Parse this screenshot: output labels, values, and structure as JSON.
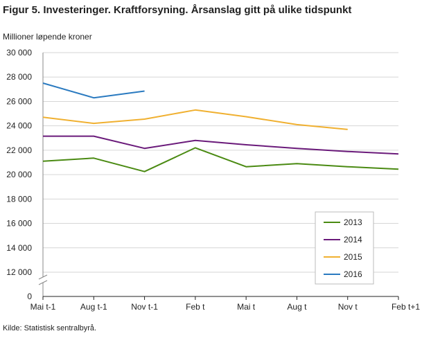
{
  "title": "Figur 5. Investeringer. Kraftforsyning. Årsanslag gitt på ulike tidspunkt",
  "source": "Kilde: Statistisk sentralbyrå.",
  "chart_data": {
    "type": "line",
    "ylabel": "Millioner løpende kroner",
    "xlabel": "",
    "categories": [
      "Mai t-1",
      "Aug t-1",
      "Nov t-1",
      "Feb t",
      "Mai t",
      "Aug t",
      "Nov t",
      "Feb t+1"
    ],
    "yticks": [
      0,
      12000,
      14000,
      16000,
      18000,
      20000,
      22000,
      24000,
      26000,
      28000,
      30000
    ],
    "ytick_labels": [
      "0",
      "12 000",
      "14 000",
      "16 000",
      "18 000",
      "20 000",
      "22 000",
      "24 000",
      "26 000",
      "28 000",
      "30 000"
    ],
    "ylim": [
      10000,
      30000
    ],
    "axis_break": true,
    "grid": "horizontal",
    "legend_position": "bottom-right",
    "series": [
      {
        "name": "2013",
        "color": "#4a8a12",
        "values": [
          21100,
          21350,
          20250,
          22200,
          20650,
          20900,
          20650,
          20450
        ]
      },
      {
        "name": "2014",
        "color": "#6a1a7a",
        "values": [
          23150,
          23150,
          22150,
          22800,
          22450,
          22150,
          21900,
          21700
        ]
      },
      {
        "name": "2015",
        "color": "#f0b030",
        "values": [
          24700,
          24200,
          24550,
          25300,
          24750,
          24100,
          23700,
          null
        ]
      },
      {
        "name": "2016",
        "color": "#2a7ac0",
        "values": [
          27500,
          26300,
          26850,
          null,
          null,
          null,
          null,
          null
        ]
      }
    ]
  }
}
